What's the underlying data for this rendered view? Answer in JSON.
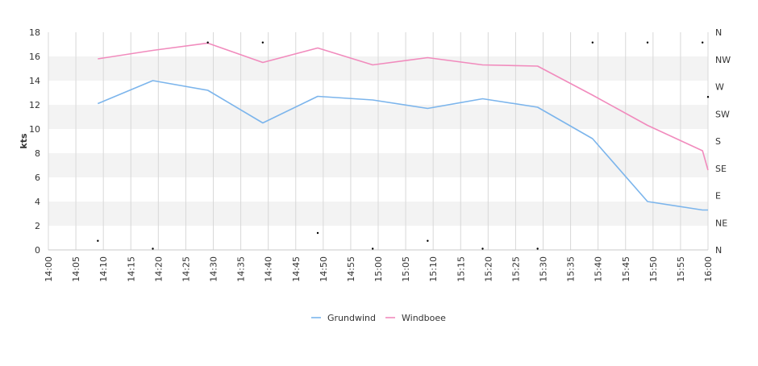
{
  "chart_data": {
    "type": "line",
    "ylabel": "kts",
    "ylim": [
      0,
      18
    ],
    "yticks": [
      "0",
      "2",
      "4",
      "6",
      "8",
      "10",
      "12",
      "14",
      "16",
      "18"
    ],
    "xlim_minutes": [
      840,
      960
    ],
    "xticks": [
      "14:00",
      "14:05",
      "14:10",
      "14:15",
      "14:20",
      "14:25",
      "14:30",
      "14:35",
      "14:40",
      "14:45",
      "14:50",
      "14:55",
      "15:00",
      "15:05",
      "15:10",
      "15:15",
      "15:20",
      "15:25",
      "15:30",
      "15:35",
      "15:40",
      "15:45",
      "15:50",
      "15:55",
      "16:00"
    ],
    "direction_axis": {
      "labels": [
        "N",
        "NE",
        "E",
        "SE",
        "S",
        "SW",
        "W",
        "NW",
        "N"
      ],
      "range_degrees": [
        0,
        360
      ]
    },
    "grid": true,
    "legend_position": "bottom",
    "series": [
      {
        "name": "Grundwind",
        "color": "#7cb5ec",
        "x": [
          "14:09",
          "14:19",
          "14:29",
          "14:39",
          "14:49",
          "14:59",
          "15:09",
          "15:19",
          "15:29",
          "15:39",
          "15:49",
          "15:59",
          "16:00"
        ],
        "values": [
          12.1,
          14.0,
          13.2,
          10.5,
          12.7,
          12.4,
          11.7,
          12.5,
          11.8,
          9.2,
          4.0,
          3.3,
          3.3
        ]
      },
      {
        "name": "Windboee",
        "color": "#f18bbd",
        "x": [
          "14:09",
          "14:19",
          "14:29",
          "14:39",
          "14:49",
          "14:59",
          "15:09",
          "15:19",
          "15:29",
          "15:39",
          "15:49",
          "15:59",
          "16:00"
        ],
        "values": [
          15.8,
          16.5,
          17.1,
          15.5,
          16.7,
          15.3,
          15.9,
          15.3,
          15.2,
          12.8,
          10.3,
          8.2,
          6.6
        ]
      }
    ],
    "direction_points": [
      {
        "x": "14:09",
        "deg": 15
      },
      {
        "x": "14:19",
        "deg": 2
      },
      {
        "x": "14:29",
        "deg": 343
      },
      {
        "x": "14:39",
        "deg": 343
      },
      {
        "x": "14:49",
        "deg": 28
      },
      {
        "x": "14:59",
        "deg": 2
      },
      {
        "x": "15:09",
        "deg": 15
      },
      {
        "x": "15:19",
        "deg": 2
      },
      {
        "x": "15:29",
        "deg": 2
      },
      {
        "x": "15:39",
        "deg": 343
      },
      {
        "x": "15:49",
        "deg": 343
      },
      {
        "x": "15:59",
        "deg": 343
      },
      {
        "x": "16:00",
        "deg": 253
      }
    ]
  }
}
